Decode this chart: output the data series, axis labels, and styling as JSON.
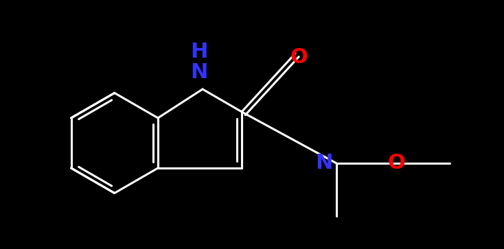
{
  "bg_color": "#000000",
  "bond_color": "#1a1a1a",
  "line_color": "#ffffff",
  "nh_color": "#3333ff",
  "o_color": "#ff0000",
  "n_color": "#3333ff",
  "bond_width": 2.2,
  "figsize": [
    7.34,
    3.63
  ],
  "dpi": 100,
  "xlim": [
    0,
    7.34
  ],
  "ylim": [
    0,
    3.63
  ]
}
